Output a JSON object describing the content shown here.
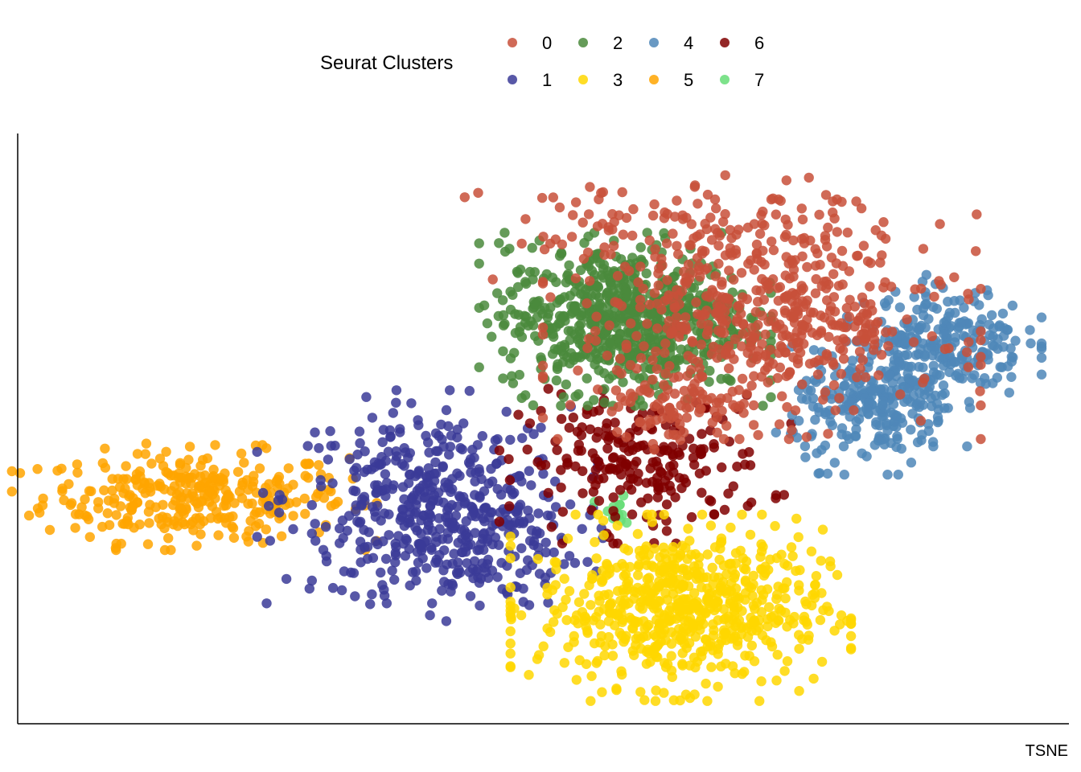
{
  "chart_data": {
    "type": "scatter",
    "title": "",
    "xlabel": "TSNE",
    "ylabel": "",
    "axis_ticks": false,
    "grid": false,
    "legend": {
      "title": "Seurat Clusters",
      "placement": "top",
      "entries": [
        {
          "label": "0",
          "color": "#C8503A"
        },
        {
          "label": "1",
          "color": "#3B3B98"
        },
        {
          "label": "2",
          "color": "#4A8A3C"
        },
        {
          "label": "3",
          "color": "#FFD700"
        },
        {
          "label": "4",
          "color": "#4F87B8"
        },
        {
          "label": "5",
          "color": "#FFA500"
        },
        {
          "label": "6",
          "color": "#800000"
        },
        {
          "label": "7",
          "color": "#66DD77"
        }
      ]
    },
    "xlim": [
      0,
      100
    ],
    "ylim": [
      0,
      100
    ],
    "series": [
      {
        "name": "0",
        "color": "#C8503A",
        "n": 700,
        "blobs": [
          {
            "cx": 72,
            "cy": 70,
            "sx": 9,
            "sy": 9,
            "w": 0.75
          },
          {
            "cx": 63,
            "cy": 86,
            "sx": 9,
            "sy": 5,
            "w": 0.15
          },
          {
            "cx": 64,
            "cy": 53,
            "sx": 3,
            "sy": 3,
            "w": 0.1
          }
        ]
      },
      {
        "name": "1",
        "color": "#3B3B98",
        "n": 520,
        "blobs": [
          {
            "cx": 39,
            "cy": 38,
            "sx": 7,
            "sy": 8,
            "w": 0.6
          },
          {
            "cx": 42,
            "cy": 30,
            "sx": 6,
            "sy": 6,
            "w": 0.4
          }
        ]
      },
      {
        "name": "2",
        "color": "#4A8A3C",
        "n": 700,
        "blobs": [
          {
            "cx": 58.5,
            "cy": 70,
            "sx": 6,
            "sy": 6.5,
            "w": 1.0
          }
        ]
      },
      {
        "name": "3",
        "color": "#FFD700",
        "n": 650,
        "blobs": [
          {
            "cx": 64,
            "cy": 18,
            "sx": 7,
            "sy": 7,
            "w": 1.0
          }
        ]
      },
      {
        "name": "4",
        "color": "#4F87B8",
        "n": 480,
        "blobs": [
          {
            "cx": 90,
            "cy": 66,
            "sx": 4,
            "sy": 5,
            "w": 0.5
          },
          {
            "cx": 83,
            "cy": 54,
            "sx": 4,
            "sy": 5,
            "w": 0.5
          }
        ]
      },
      {
        "name": "5",
        "color": "#FFA500",
        "n": 320,
        "blobs": [
          {
            "cx": 16,
            "cy": 38,
            "sx": 7.5,
            "sy": 4,
            "w": 1.0
          }
        ]
      },
      {
        "name": "6",
        "color": "#800000",
        "n": 220,
        "blobs": [
          {
            "cx": 60.5,
            "cy": 44,
            "sx": 6,
            "sy": 6,
            "w": 1.0
          }
        ]
      },
      {
        "name": "7",
        "color": "#66DD77",
        "n": 14,
        "blobs": [
          {
            "cx": 57.5,
            "cy": 35,
            "sx": 1,
            "sy": 1.5,
            "w": 1.0
          }
        ]
      }
    ]
  }
}
